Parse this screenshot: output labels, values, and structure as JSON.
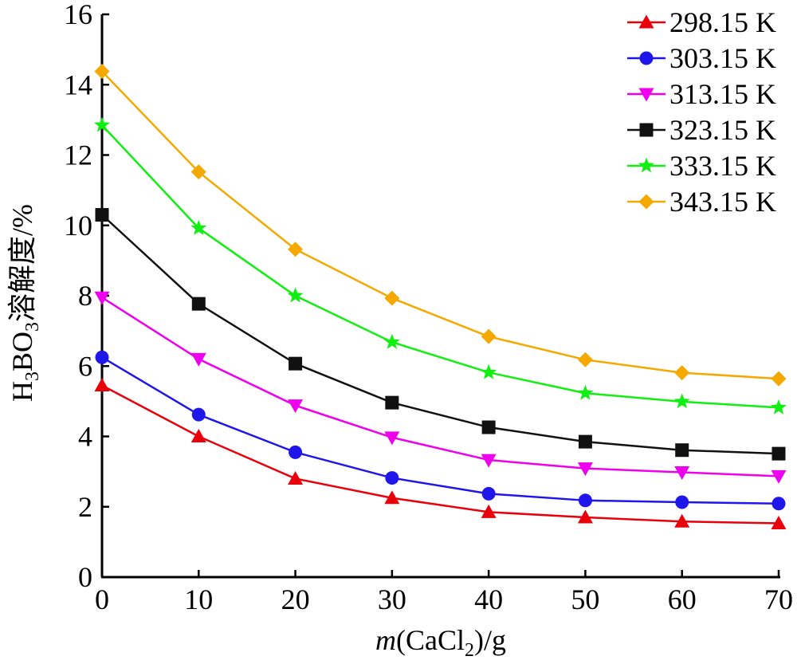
{
  "chart_data": {
    "type": "line",
    "xlabel": {
      "italic": "m",
      "pre": "(CaCl",
      "sub": "2",
      "post": ")/g"
    },
    "ylabel": {
      "pre": "H",
      "sub1": "3",
      "mid": "BO",
      "sub2": "3",
      "post": "溶解度/%"
    },
    "xlim": [
      0,
      70
    ],
    "ylim": [
      0,
      16
    ],
    "x_ticks": [
      0,
      10,
      20,
      30,
      40,
      50,
      60,
      70
    ],
    "y_ticks": [
      0,
      2,
      4,
      6,
      8,
      10,
      12,
      14,
      16
    ],
    "grid": false,
    "legend_position": "top-right",
    "x": [
      0,
      10,
      20,
      30,
      40,
      50,
      60,
      70
    ],
    "series": [
      {
        "name": "298.15 K",
        "color": "#e8000b",
        "marker": "triangle-up",
        "values": [
          5.45,
          4.0,
          2.8,
          2.25,
          1.85,
          1.7,
          1.58,
          1.53
        ]
      },
      {
        "name": "303.15 K",
        "color": "#1f16ea",
        "marker": "circle",
        "values": [
          6.25,
          4.62,
          3.55,
          2.82,
          2.37,
          2.18,
          2.13,
          2.09
        ]
      },
      {
        "name": "313.15 K",
        "color": "#ee00ee",
        "marker": "triangle-down",
        "values": [
          7.95,
          6.2,
          4.88,
          3.97,
          3.33,
          3.09,
          2.98,
          2.87
        ]
      },
      {
        "name": "323.15 K",
        "color": "#111111",
        "marker": "square",
        "values": [
          10.3,
          7.77,
          6.07,
          4.96,
          4.26,
          3.85,
          3.61,
          3.51
        ]
      },
      {
        "name": "333.15 K",
        "color": "#11ee11",
        "marker": "star",
        "values": [
          12.85,
          9.92,
          8.0,
          6.68,
          5.82,
          5.23,
          4.99,
          4.82
        ]
      },
      {
        "name": "343.15 K",
        "color": "#f5a800",
        "marker": "diamond",
        "values": [
          14.38,
          11.52,
          9.32,
          7.93,
          6.84,
          6.18,
          5.81,
          5.64
        ]
      }
    ]
  }
}
